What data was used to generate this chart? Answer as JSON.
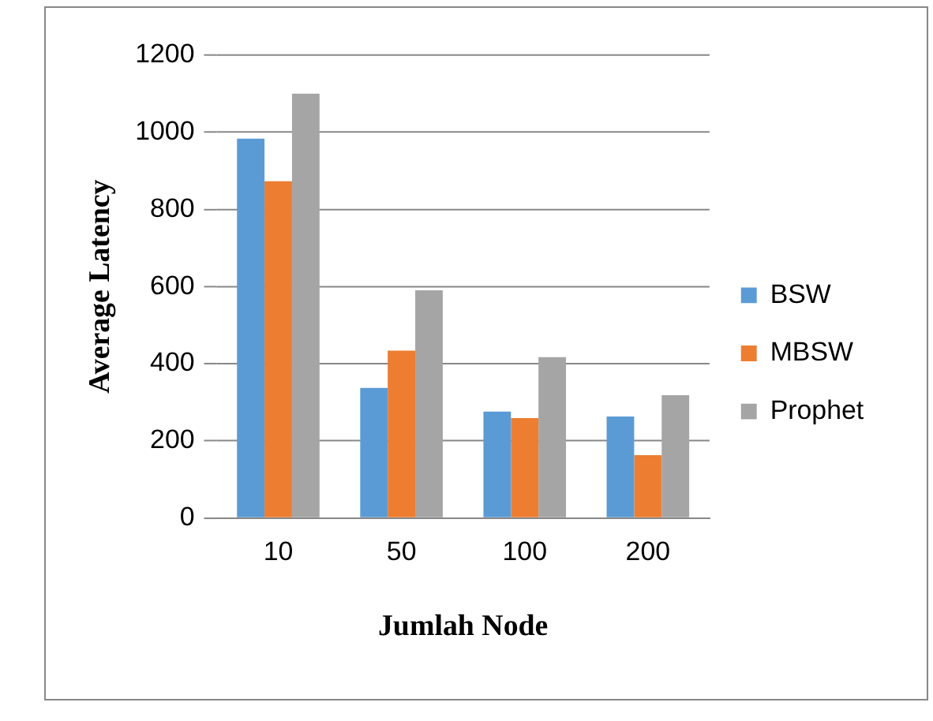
{
  "chart_data": {
    "type": "bar",
    "xlabel": "Jumlah Node",
    "ylabel": "Average Latency",
    "categories": [
      "10",
      "50",
      "100",
      "200"
    ],
    "series": [
      {
        "name": "BSW",
        "color": "#5b9bd5",
        "values": [
          983,
          337,
          276,
          263
        ]
      },
      {
        "name": "MBSW",
        "color": "#ed7d31",
        "values": [
          873,
          434,
          259,
          163
        ]
      },
      {
        "name": "Prophet",
        "color": "#a5a5a5",
        "values": [
          1100,
          590,
          417,
          318
        ]
      }
    ],
    "ylim": [
      0,
      1200
    ],
    "yticks": [
      0,
      200,
      400,
      600,
      800,
      1000,
      1200
    ],
    "grid": "y",
    "legend": "right"
  }
}
